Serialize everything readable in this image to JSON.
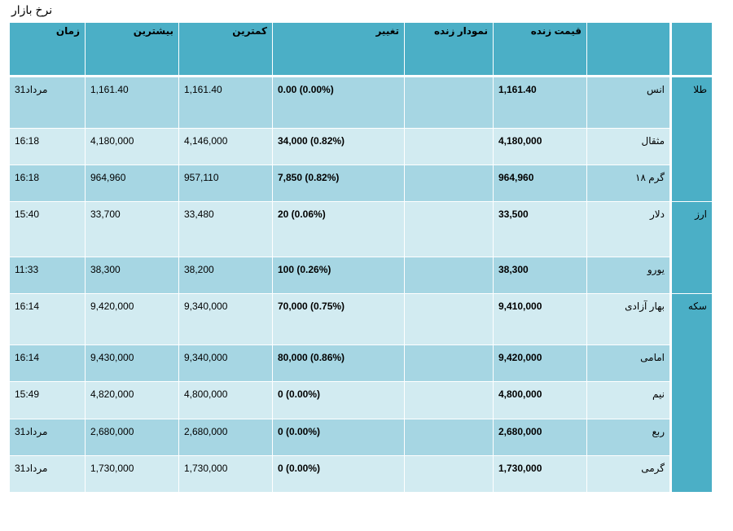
{
  "page": {
    "title": "نرخ بازار"
  },
  "table": {
    "headers": {
      "group": "",
      "name": "",
      "live_price": "قیمت زنده",
      "live_chart": "نمودار زنده",
      "change": "تغییر",
      "low": "کمترین",
      "high": "بیشترین",
      "time": "زمان"
    },
    "groups": {
      "gold": "طلا",
      "currency": "ارز",
      "coin": "سکه"
    },
    "rows": [
      {
        "name": "انس",
        "price": "1,161.40",
        "chart": "",
        "change": "0.00 (0.00%)",
        "low": "1,161.40",
        "high": "1,161.40",
        "time": "31مرداد"
      },
      {
        "name": "مثقال",
        "price": "4,180,000",
        "chart": "",
        "change": "34,000 (0.82%)",
        "low": "4,146,000",
        "high": "4,180,000",
        "time": "16:18"
      },
      {
        "name": "گرم ۱۸",
        "price": "964,960",
        "chart": "",
        "change": "7,850 (0.82%)",
        "low": "957,110",
        "high": "964,960",
        "time": "16:18"
      },
      {
        "name": "دلار",
        "price": "33,500",
        "chart": "",
        "change": "20 (0.06%)",
        "low": "33,480",
        "high": "33,700",
        "time": "15:40"
      },
      {
        "name": "یورو",
        "price": "38,300",
        "chart": "",
        "change": "100 (0.26%)",
        "low": "38,200",
        "high": "38,300",
        "time": "11:33"
      },
      {
        "name": "بهار آزادی",
        "price": "9,410,000",
        "chart": "",
        "change": "70,000 (0.75%)",
        "low": "9,340,000",
        "high": "9,420,000",
        "time": "16:14"
      },
      {
        "name": "امامی",
        "price": "9,420,000",
        "chart": "",
        "change": "80,000 (0.86%)",
        "low": "9,340,000",
        "high": "9,430,000",
        "time": "16:14"
      },
      {
        "name": "نیم",
        "price": "4,800,000",
        "chart": "",
        "change": "0 (0.00%)",
        "low": "4,800,000",
        "high": "4,820,000",
        "time": "15:49"
      },
      {
        "name": "ربع",
        "price": "2,680,000",
        "chart": "",
        "change": "0 (0.00%)",
        "low": "2,680,000",
        "high": "2,680,000",
        "time": "31مرداد"
      },
      {
        "name": "گرمی",
        "price": "1,730,000",
        "chart": "",
        "change": "0 (0.00%)",
        "low": "1,730,000",
        "high": "1,730,000",
        "time": "31مرداد"
      }
    ]
  },
  "colors": {
    "header_bg": "#4bafc6",
    "row_dark": "#a6d6e3",
    "row_light": "#d2ebf1"
  }
}
